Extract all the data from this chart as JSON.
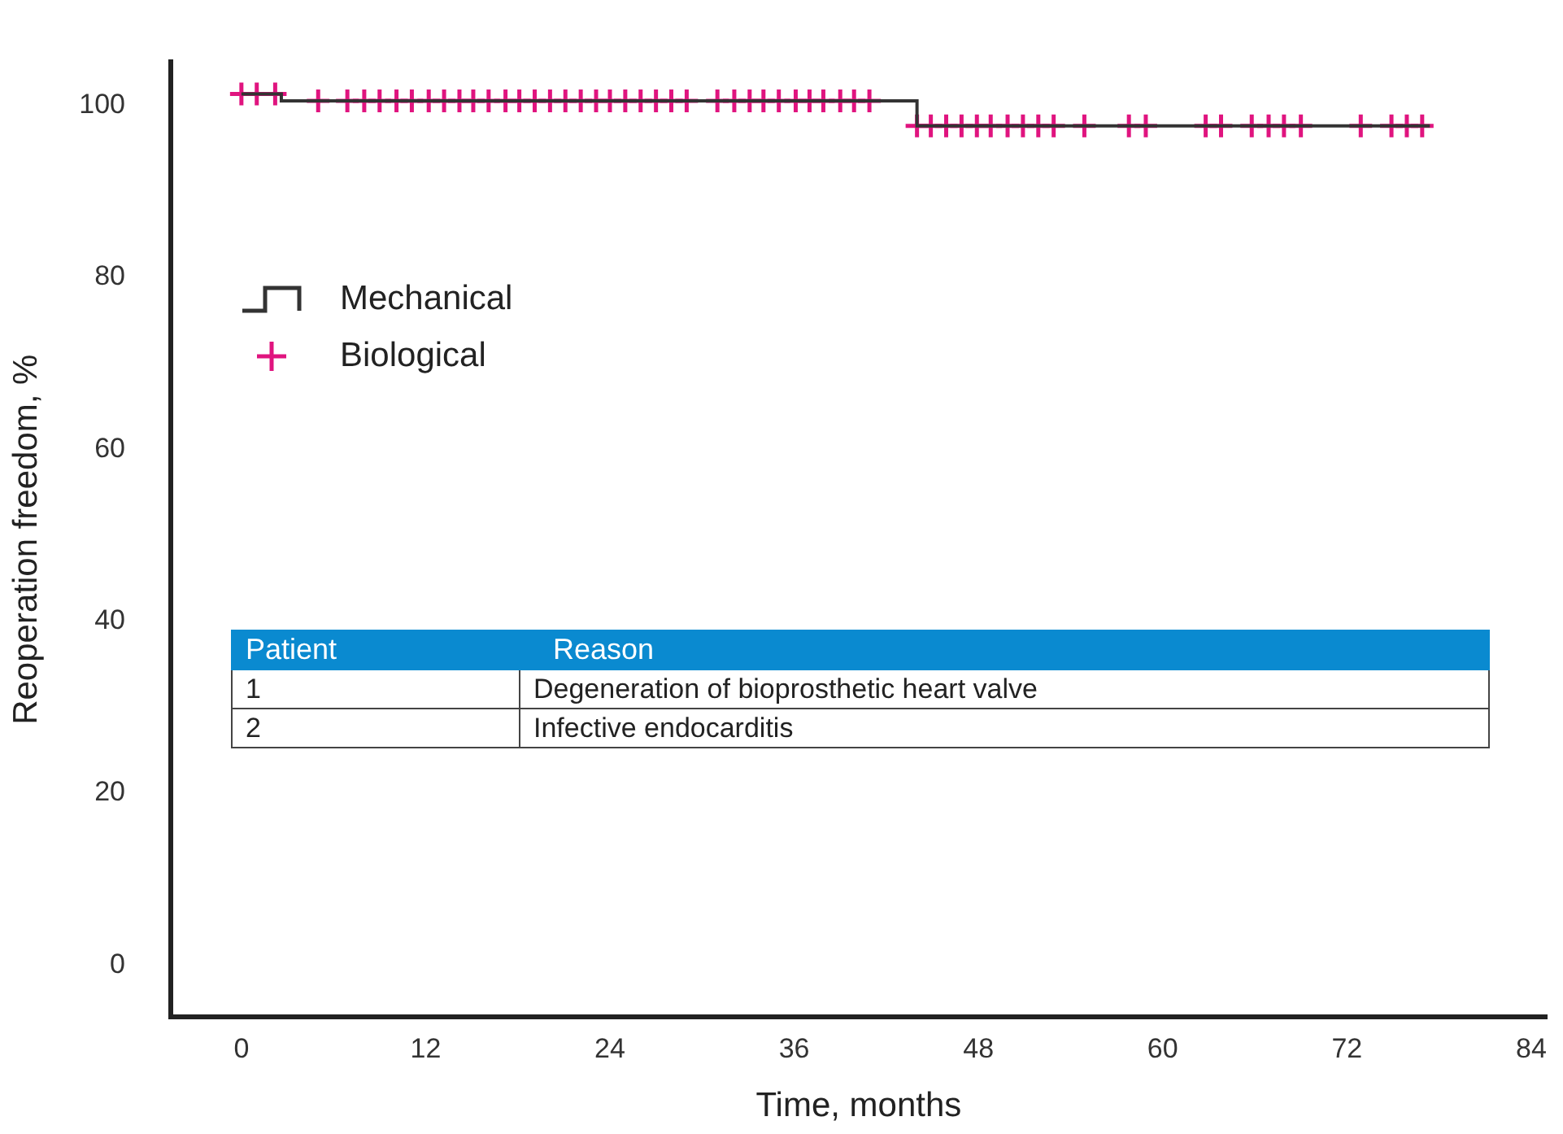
{
  "chart_data": {
    "type": "step",
    "xlabel": "Time, months",
    "ylabel": "Reoperation freedom, %",
    "xlim": [
      -4.6,
      85
    ],
    "xticks": [
      0,
      12,
      24,
      36,
      48,
      60,
      72,
      84
    ],
    "ylim": [
      -6,
      105
    ],
    "yticks": [
      0,
      20,
      40,
      60,
      80,
      100
    ],
    "grid": false,
    "legend": "top left",
    "series": [
      {
        "name": "Mechanical",
        "color": "#333333",
        "marker": "none",
        "x": [
          0,
          2.6,
          44,
          77.4
        ],
        "values": [
          101.3,
          100.5,
          97.6,
          97.6
        ]
      },
      {
        "name": "Biological",
        "type": "scatter",
        "color": "#e0147f",
        "marker": "cross",
        "x": [
          0,
          1,
          2.2,
          5,
          6.9,
          8,
          9,
          10.1,
          11.1,
          12.2,
          13.2,
          14.2,
          15.1,
          16.1,
          17.2,
          18.1,
          19.1,
          20.1,
          21.1,
          22.1,
          23.1,
          24,
          25,
          26,
          27,
          28,
          29,
          31,
          32.1,
          33.1,
          34,
          35,
          36.1,
          37,
          37.9,
          39,
          39.9,
          40.9,
          44,
          44.9,
          45.9,
          46.9,
          47.9,
          48.8,
          49.9,
          50.9,
          51.9,
          52.9,
          54.9,
          57.8,
          58.9,
          62.8,
          63.8,
          65.8,
          66.9,
          67.9,
          69,
          72.9,
          74.9,
          75.9,
          76.9
        ],
        "values": [
          101.3,
          101.3,
          101.3,
          100.5,
          100.5,
          100.5,
          100.5,
          100.5,
          100.5,
          100.5,
          100.5,
          100.5,
          100.5,
          100.5,
          100.5,
          100.5,
          100.5,
          100.5,
          100.5,
          100.5,
          100.5,
          100.5,
          100.5,
          100.5,
          100.5,
          100.5,
          100.5,
          100.5,
          100.5,
          100.5,
          100.5,
          100.5,
          100.5,
          100.5,
          100.5,
          100.5,
          100.5,
          100.5,
          97.6,
          97.6,
          97.6,
          97.6,
          97.6,
          97.6,
          97.6,
          97.6,
          97.6,
          97.6,
          97.6,
          97.6,
          97.6,
          97.6,
          97.6,
          97.6,
          97.6,
          97.6,
          97.6,
          97.6,
          97.6,
          97.6,
          97.6
        ]
      }
    ],
    "annotations": [
      "Patient",
      "Reason",
      "1",
      "Degeneration of bioprosthetic heart valve",
      "2",
      "Infective endocarditis"
    ]
  }
}
